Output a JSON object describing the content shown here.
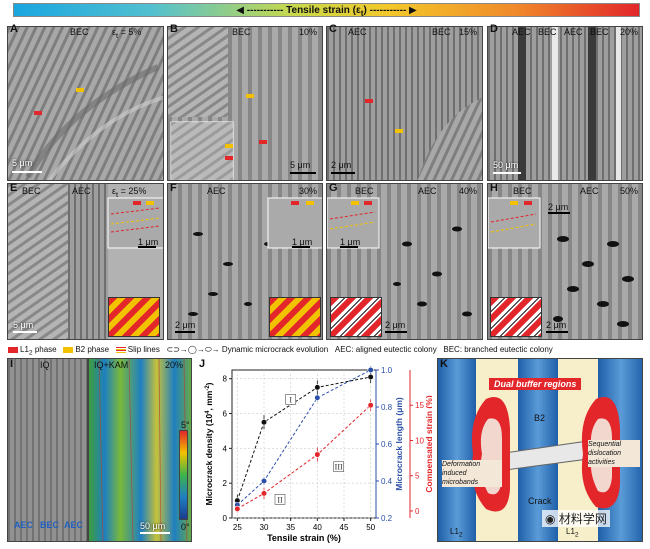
{
  "header": {
    "title": "Tensile strain (ε",
    "title_sub": "t",
    "title_end": ")"
  },
  "panels": {
    "A": {
      "letter": "A",
      "colony": "BEC",
      "strain": "ε",
      "strain_sub": "t",
      "strain_val": " = 5%",
      "scale": "5 μm"
    },
    "B": {
      "letter": "B",
      "colony": "BEC",
      "strain": "10%",
      "scale": "5 μm"
    },
    "C": {
      "letter": "C",
      "colony_left": "AEC",
      "colony_right": "BEC",
      "strain": "15%",
      "scale": "2 μm"
    },
    "D": {
      "letter": "D",
      "colonies": [
        "AEC",
        "BEC",
        "AEC",
        "BEC"
      ],
      "strain": "20%",
      "scale": "50 μm"
    },
    "E": {
      "letter": "E",
      "colony_left": "BEC",
      "colony_right": "AEC",
      "strain": "ε",
      "strain_sub": "t",
      "strain_val": " = 25%",
      "scale": "5 μm",
      "inset_scale": "1 μm"
    },
    "F": {
      "letter": "F",
      "colony": "AEC",
      "strain": "30%",
      "scale": "2 μm",
      "inset_scale": "1 μm"
    },
    "G": {
      "letter": "G",
      "colony_left": "BEC",
      "colony_right": "AEC",
      "strain": "40%",
      "scale": "2 μm",
      "inset_scale": "1 μm"
    },
    "H": {
      "letter": "H",
      "colony_left": "BEC",
      "colony_right": "AEC",
      "strain": "50%",
      "scale": "2 μm",
      "inset_scale": "2 μm"
    }
  },
  "legend": {
    "l12": "L1",
    "l12_sub": "2",
    "l12_end": " phase",
    "b2": "B2 phase",
    "slip": "Slip lines",
    "dyn": "Dynamic microcrack evolution",
    "aec": "AEC: aligned eutectic colony",
    "bec": "BEC: branched eutectic colony"
  },
  "colors": {
    "l12": "#e2262a",
    "b2": "#f2c200",
    "slip": "#e2262a",
    "series_I": "#111111",
    "series_II": "#2b4fa8",
    "series_III": "#e2262a"
  },
  "panel_I": {
    "letter": "I",
    "left_title": "IQ",
    "right_title": "IQ+KAM",
    "strain": "20%",
    "labels": [
      "AEC",
      "BEC",
      "AEC"
    ],
    "scale": "50 μm",
    "cbar_top": "5°",
    "cbar_bottom": "0°"
  },
  "panel_K": {
    "letter": "K",
    "title": "Dual buffer regions",
    "b2": "B2",
    "left_note": "Deformation induced microbands",
    "right_note": "Sequential dislocation activities",
    "crack": "Crack",
    "l12_left": "L1",
    "l12_left_sub": "2",
    "l12_right": "L1",
    "l12_right_sub": "2",
    "watermark": "材料学网"
  },
  "chart_data": {
    "type": "line",
    "letter": "J",
    "x": [
      25,
      30,
      40,
      50
    ],
    "xlabel": "Tensile strain (%)",
    "xticks": [
      25,
      30,
      35,
      40,
      45,
      50
    ],
    "xlim": [
      24,
      51
    ],
    "series": [
      {
        "name": "I",
        "axis": "left",
        "color": "#111111",
        "values": [
          1.0,
          5.5,
          7.5,
          8.1
        ],
        "errors": [
          0.35,
          0.4,
          0.4,
          0.35
        ]
      },
      {
        "name": "II",
        "axis": "right1",
        "color": "#2b4fa8",
        "values": [
          0.27,
          0.4,
          0.85,
          1.0
        ],
        "errors": [
          0.015,
          0.02,
          0.02,
          0.02
        ]
      },
      {
        "name": "III",
        "axis": "right2",
        "color": "#e2262a",
        "values": [
          0.3,
          2.5,
          8.0,
          15.0
        ],
        "errors": [
          0.5,
          0.8,
          1.0,
          0.8
        ]
      }
    ],
    "left_axis": {
      "label": "Microcrack density (10",
      "label_sup": "4",
      "label_end": ", mm",
      "label_sup2": "-2",
      "label_close": ")",
      "ylim": [
        0,
        8.5
      ],
      "ticks": [
        0,
        2,
        4,
        6,
        8
      ]
    },
    "right1_axis": {
      "label": "Microcrack length (μm)",
      "ylim": [
        0.2,
        1.0
      ],
      "ticks": [
        "0.2",
        "0.4",
        "0.6",
        "0.8",
        "1.0"
      ]
    },
    "right2_axis": {
      "label": "Compensated strain (%)",
      "ylim": [
        -1,
        20
      ],
      "ticks": [
        0,
        5,
        10,
        15
      ]
    },
    "grid": true
  }
}
